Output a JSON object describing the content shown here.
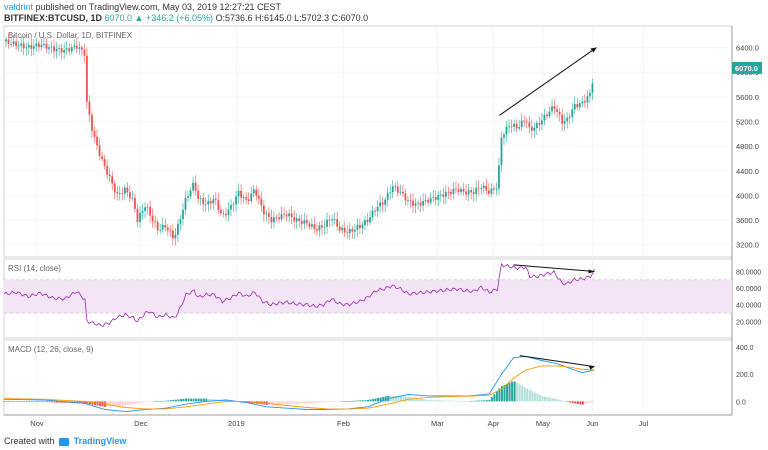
{
  "header": {
    "author": "valdrint",
    "published": "published on TradingView.com, May 03, 2019 12:27:21 CEST",
    "symbol": "BITFINEX:BTCUSD, 1D",
    "change": "6070.0 ▲ +346.2 (+6.05%)",
    "ohlc": "O:5736.6 H:6145.0 L:5702.3 C:6070.0"
  },
  "footer": {
    "created_with": "Created with",
    "brand": "TradingView"
  },
  "colors": {
    "up": "#26a69a",
    "down": "#ef5350",
    "rsi": "#9c27b0",
    "macd": "#2196f3",
    "signal": "#ff9800",
    "band": "#f3e5f5"
  },
  "chart_data": [
    {
      "type": "candlestick",
      "title": "Bitcoin / U.S. Dollar, 1D, BITFINEX",
      "last_price_label": "6070.0",
      "y_ticks": [
        "6400.0",
        "6000.0",
        "5600.0",
        "5200.0",
        "4800.0",
        "4400.0",
        "4000.0",
        "3600.0",
        "3200.0"
      ],
      "ylim": [
        3000,
        6750
      ],
      "x_ticks": [
        "Nov",
        "Dec",
        "2019",
        "Feb",
        "Mar",
        "Apr",
        "May",
        "Jun",
        "Jul"
      ],
      "trend_annotation": "arrow up along highs, Apr – May",
      "path_close": [
        [
          0,
          6500
        ],
        [
          6,
          6450
        ],
        [
          12,
          6400
        ],
        [
          18,
          6450
        ],
        [
          24,
          6380
        ],
        [
          30,
          6350
        ],
        [
          36,
          6420
        ],
        [
          40,
          6300
        ],
        [
          41,
          5500
        ],
        [
          44,
          5000
        ],
        [
          48,
          4600
        ],
        [
          52,
          4300
        ],
        [
          56,
          4000
        ],
        [
          60,
          4100
        ],
        [
          64,
          3900
        ],
        [
          66,
          3600
        ],
        [
          70,
          3850
        ],
        [
          72,
          3700
        ],
        [
          76,
          3450
        ],
        [
          80,
          3500
        ],
        [
          84,
          3300
        ],
        [
          86,
          3500
        ],
        [
          90,
          3950
        ],
        [
          94,
          4200
        ],
        [
          96,
          3950
        ],
        [
          100,
          3850
        ],
        [
          104,
          3950
        ],
        [
          108,
          3650
        ],
        [
          112,
          3800
        ],
        [
          116,
          4050
        ],
        [
          120,
          3900
        ],
        [
          124,
          4100
        ],
        [
          128,
          3750
        ],
        [
          132,
          3600
        ],
        [
          136,
          3650
        ],
        [
          140,
          3700
        ],
        [
          144,
          3600
        ],
        [
          150,
          3550
        ],
        [
          154,
          3450
        ],
        [
          158,
          3500
        ],
        [
          162,
          3650
        ],
        [
          166,
          3450
        ],
        [
          170,
          3400
        ],
        [
          176,
          3500
        ],
        [
          180,
          3600
        ],
        [
          184,
          3800
        ],
        [
          188,
          3900
        ],
        [
          192,
          4150
        ],
        [
          196,
          4050
        ],
        [
          200,
          3900
        ],
        [
          204,
          3850
        ],
        [
          208,
          3900
        ],
        [
          212,
          3950
        ],
        [
          216,
          4000
        ],
        [
          220,
          4050
        ],
        [
          224,
          4100
        ],
        [
          228,
          4050
        ],
        [
          232,
          4050
        ],
        [
          236,
          4150
        ],
        [
          240,
          4050
        ],
        [
          244,
          4150
        ],
        [
          246,
          4950
        ],
        [
          250,
          5150
        ],
        [
          254,
          5100
        ],
        [
          258,
          5250
        ],
        [
          260,
          5050
        ],
        [
          264,
          5150
        ],
        [
          268,
          5300
        ],
        [
          272,
          5450
        ],
        [
          276,
          5200
        ],
        [
          278,
          5200
        ],
        [
          282,
          5450
        ],
        [
          286,
          5500
        ],
        [
          290,
          5650
        ],
        [
          292,
          6070
        ]
      ]
    },
    {
      "type": "line",
      "title": "RSI (14, close)",
      "y_ticks": [
        "80.0000",
        "60.0000",
        "40.0000",
        "20.0000"
      ],
      "ylim": [
        0,
        95
      ],
      "band": [
        30,
        70
      ],
      "trend_annotation": "arrow down along highs, Apr – May",
      "path": [
        [
          0,
          53
        ],
        [
          6,
          55
        ],
        [
          12,
          50
        ],
        [
          18,
          54
        ],
        [
          24,
          48
        ],
        [
          30,
          47
        ],
        [
          36,
          56
        ],
        [
          40,
          46
        ],
        [
          41,
          20
        ],
        [
          44,
          18
        ],
        [
          48,
          15
        ],
        [
          52,
          18
        ],
        [
          56,
          25
        ],
        [
          60,
          28
        ],
        [
          64,
          24
        ],
        [
          66,
          20
        ],
        [
          70,
          30
        ],
        [
          72,
          32
        ],
        [
          76,
          25
        ],
        [
          80,
          28
        ],
        [
          84,
          24
        ],
        [
          86,
          30
        ],
        [
          90,
          52
        ],
        [
          94,
          57
        ],
        [
          96,
          49
        ],
        [
          100,
          52
        ],
        [
          104,
          52
        ],
        [
          108,
          44
        ],
        [
          112,
          48
        ],
        [
          116,
          54
        ],
        [
          120,
          50
        ],
        [
          124,
          55
        ],
        [
          128,
          44
        ],
        [
          132,
          40
        ],
        [
          136,
          42
        ],
        [
          140,
          43
        ],
        [
          144,
          41
        ],
        [
          150,
          40
        ],
        [
          154,
          38
        ],
        [
          158,
          40
        ],
        [
          162,
          47
        ],
        [
          166,
          41
        ],
        [
          170,
          40
        ],
        [
          176,
          44
        ],
        [
          180,
          49
        ],
        [
          184,
          57
        ],
        [
          188,
          59
        ],
        [
          192,
          63
        ],
        [
          196,
          59
        ],
        [
          200,
          53
        ],
        [
          204,
          54
        ],
        [
          208,
          55
        ],
        [
          212,
          56
        ],
        [
          216,
          57
        ],
        [
          220,
          58
        ],
        [
          224,
          59
        ],
        [
          228,
          57
        ],
        [
          232,
          56
        ],
        [
          236,
          61
        ],
        [
          240,
          55
        ],
        [
          244,
          59
        ],
        [
          246,
          88
        ],
        [
          250,
          86
        ],
        [
          254,
          84
        ],
        [
          258,
          85
        ],
        [
          260,
          74
        ],
        [
          264,
          74
        ],
        [
          268,
          77
        ],
        [
          272,
          79
        ],
        [
          276,
          66
        ],
        [
          278,
          65
        ],
        [
          282,
          70
        ],
        [
          286,
          71
        ],
        [
          290,
          74
        ],
        [
          292,
          81
        ]
      ]
    },
    {
      "type": "macd",
      "title": "MACD (12, 26, close, 9)",
      "y_ticks": [
        "400.0",
        "200.0",
        "0.0"
      ],
      "ylim": [
        -100,
        450
      ],
      "trend_annotation": "arrow down along peak, Apr – May",
      "macd": [
        [
          0,
          15
        ],
        [
          20,
          10
        ],
        [
          40,
          -15
        ],
        [
          50,
          -60
        ],
        [
          60,
          -75
        ],
        [
          70,
          -60
        ],
        [
          80,
          -50
        ],
        [
          90,
          -20
        ],
        [
          100,
          0
        ],
        [
          110,
          10
        ],
        [
          120,
          -10
        ],
        [
          130,
          -40
        ],
        [
          140,
          -50
        ],
        [
          150,
          -60
        ],
        [
          160,
          -60
        ],
        [
          170,
          -55
        ],
        [
          180,
          -40
        ],
        [
          190,
          20
        ],
        [
          200,
          50
        ],
        [
          210,
          40
        ],
        [
          220,
          40
        ],
        [
          230,
          40
        ],
        [
          240,
          55
        ],
        [
          246,
          200
        ],
        [
          252,
          320
        ],
        [
          258,
          330
        ],
        [
          266,
          300
        ],
        [
          274,
          275
        ],
        [
          280,
          240
        ],
        [
          286,
          210
        ],
        [
          292,
          230
        ]
      ],
      "signal": [
        [
          0,
          20
        ],
        [
          20,
          15
        ],
        [
          40,
          0
        ],
        [
          50,
          -20
        ],
        [
          60,
          -45
        ],
        [
          70,
          -55
        ],
        [
          80,
          -55
        ],
        [
          90,
          -40
        ],
        [
          100,
          -20
        ],
        [
          110,
          0
        ],
        [
          120,
          0
        ],
        [
          130,
          -15
        ],
        [
          140,
          -30
        ],
        [
          150,
          -45
        ],
        [
          160,
          -55
        ],
        [
          170,
          -57
        ],
        [
          180,
          -50
        ],
        [
          190,
          -20
        ],
        [
          200,
          15
        ],
        [
          210,
          30
        ],
        [
          220,
          35
        ],
        [
          230,
          38
        ],
        [
          240,
          45
        ],
        [
          246,
          90
        ],
        [
          252,
          170
        ],
        [
          258,
          230
        ],
        [
          266,
          260
        ],
        [
          274,
          260
        ],
        [
          280,
          250
        ],
        [
          286,
          235
        ],
        [
          292,
          230
        ]
      ]
    }
  ]
}
